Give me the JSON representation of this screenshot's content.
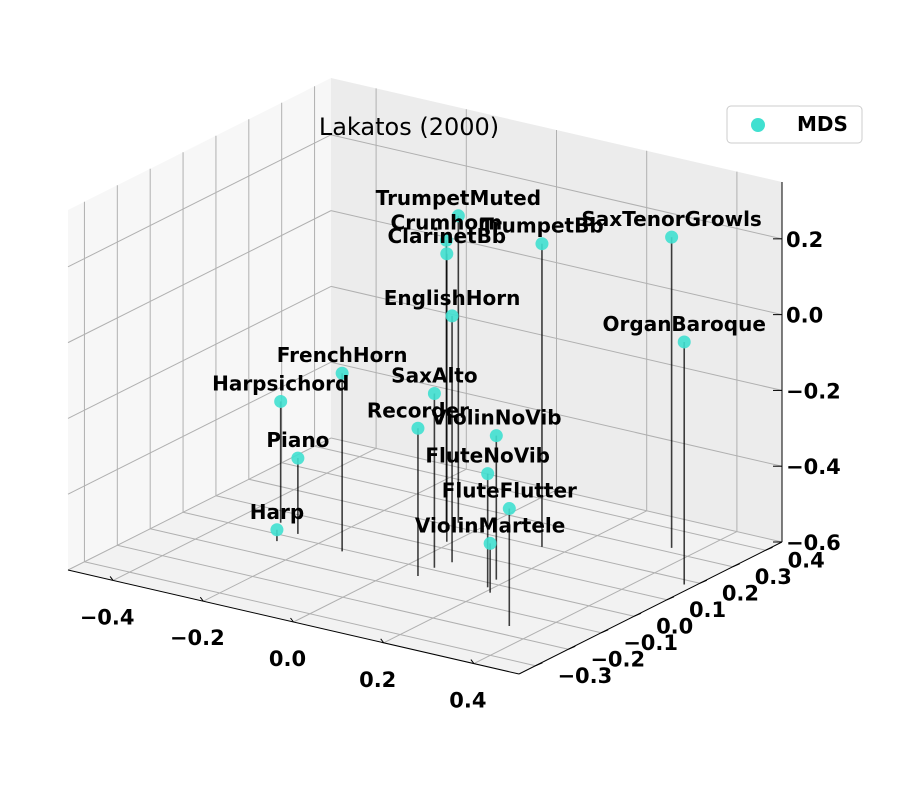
{
  "chart_data": {
    "type": "scatter",
    "title": "Lakatos (2000)",
    "xlabel": "",
    "ylabel": "",
    "zlabel": "",
    "xlim": [
      -0.5,
      0.5
    ],
    "ylim": [
      -0.35,
      0.45
    ],
    "zlim": [
      -0.6,
      0.35
    ],
    "x_ticks": [
      "−0.4",
      "−0.2",
      "0.0",
      "0.2",
      "0.4"
    ],
    "x_tick_values": [
      -0.4,
      -0.2,
      0.0,
      0.2,
      0.4
    ],
    "y_ticks": [
      "−0.3",
      "−0.2",
      "−0.1",
      "0.0",
      "0.1",
      "0.2",
      "0.3",
      "0.4"
    ],
    "y_tick_values": [
      -0.3,
      -0.2,
      -0.1,
      0.0,
      0.1,
      0.2,
      0.3,
      0.4
    ],
    "z_ticks": [
      "−0.6",
      "−0.4",
      "−0.2",
      "0.0",
      "0.2"
    ],
    "z_tick_values": [
      -0.6,
      -0.4,
      -0.2,
      0.0,
      0.2
    ],
    "grid": true,
    "legend": {
      "position": "top-right",
      "entries": [
        "MDS"
      ]
    },
    "marker_color": "#40e0d0",
    "series": [
      {
        "name": "MDS",
        "points": [
          {
            "label": "TrumpetMuted",
            "x": -0.05,
            "y": 0.22,
            "z": 0.21
          },
          {
            "label": "Crumhorn",
            "x": -0.04,
            "y": 0.17,
            "z": 0.17
          },
          {
            "label": "ClarinetBb",
            "x": -0.01,
            "y": 0.13,
            "z": 0.16
          },
          {
            "label": "TrumpetBb",
            "x": 0.15,
            "y": 0.2,
            "z": 0.2
          },
          {
            "label": "SaxTenorGrowls",
            "x": 0.35,
            "y": 0.32,
            "z": 0.22
          },
          {
            "label": "EnglishHorn",
            "x": 0.06,
            "y": 0.05,
            "z": 0.05
          },
          {
            "label": "OrganBaroque",
            "x": 0.48,
            "y": 0.18,
            "z": 0.04
          },
          {
            "label": "SaxAlto",
            "x": 0.05,
            "y": 0.01,
            "z": -0.14
          },
          {
            "label": "FrenchHorn",
            "x": -0.14,
            "y": -0.01,
            "z": -0.13
          },
          {
            "label": "ViolinNoVib",
            "x": 0.18,
            "y": 0.02,
            "z": -0.22
          },
          {
            "label": "Recorder",
            "x": 0.05,
            "y": -0.04,
            "z": -0.21
          },
          {
            "label": "FluteNoVib",
            "x": 0.19,
            "y": -0.02,
            "z": -0.3
          },
          {
            "label": "FluteFlutter",
            "x": 0.34,
            "y": -0.16,
            "z": -0.29
          },
          {
            "label": "Harpsichord",
            "x": -0.32,
            "y": 0.05,
            "z": -0.28
          },
          {
            "label": "Piano",
            "x": -0.26,
            "y": 0.02,
            "z": -0.4
          },
          {
            "label": "ViolinMartele",
            "x": 0.21,
            "y": -0.04,
            "z": -0.47
          },
          {
            "label": "Harp",
            "x": -0.27,
            "y": -0.03,
            "z": -0.57
          }
        ]
      }
    ]
  }
}
